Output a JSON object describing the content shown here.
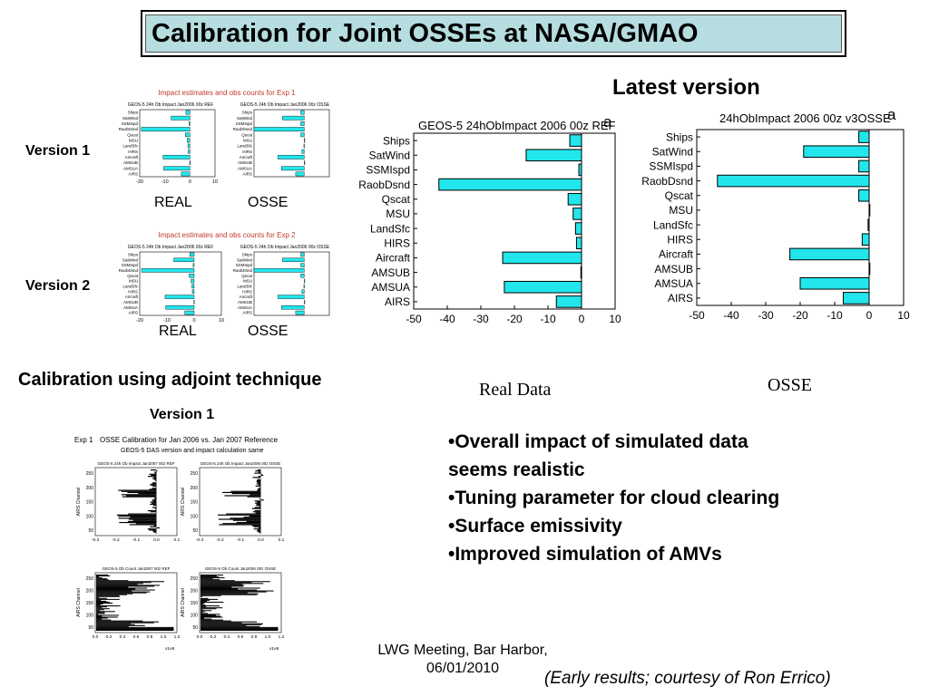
{
  "slide": {
    "title": "Calibration for Joint OSSEs at NASA/GMAO",
    "latest_version": "Latest version",
    "version1": "Version 1",
    "version2": "Version 2",
    "real": "REAL",
    "osse": "OSSE",
    "calibration_adjoint": "Calibration using adjoint technique",
    "version1_lower": "Version 1",
    "real_data": "Real Data",
    "osse_caption": "OSSE",
    "bullets": [
      "•Overall impact of simulated data",
      "seems realistic",
      "•Tuning parameter for cloud clearing",
      "•Surface emissivity",
      "•Improved  simulation of AMVs"
    ],
    "footer_line1": "LWG Meeting, Bar Harbor,",
    "footer_line2": "06/01/2010",
    "credit": "(Early results; courtesy of Ron Errico)"
  },
  "small_figs": {
    "exp1_title": "Impact estimates and obs counts for Exp 1",
    "exp2_title": "Impact estimates and obs counts for Exp 2",
    "ref_title": "GEOS-5 24h Ob Impact Jan2006 00z  REF",
    "osse_title": "GEOS-5 24h Ob Impact Jan2006 00z  OSSE",
    "xticks": [
      "-20",
      "-10",
      "0",
      "10"
    ]
  },
  "adjoint_fig": {
    "header_exp": "Exp 1",
    "header_title": "OSSE Calibration for Jan 2006 vs. Jan 2007 Reference",
    "header_sub": "GEOS-5 DAS version and impact calculation same",
    "tl_title": "GEOS-5 24h Ob Impact Jan2007 00z  REF",
    "tr_title": "GEOS-5 24h Ob Impact Jan2006 00z  OSSE",
    "bl_title": "GEOS-5 Ob Count Jan2007 00z  REF",
    "br_title": "GEOS-5 Ob Count Jan2006 00z  OSSE",
    "ylabel": "AIRS Channel",
    "yticks": [
      "250",
      "200",
      "150",
      "100",
      "50"
    ],
    "impact_xticks": [
      "-0.3",
      "-0.2",
      "-0.1",
      "0.0",
      "0.1"
    ],
    "count_xticks": [
      "0.0",
      "0.2",
      "0.4",
      "0.6",
      "0.8",
      "1.0",
      "1.2"
    ],
    "count_exp": "x1e5"
  },
  "chart_data": [
    {
      "type": "bar",
      "orientation": "horizontal",
      "title": "GEOS-5 24hObImpact 2006 00z REF",
      "panel_letter": "a",
      "categories": [
        "Ships",
        "SatWind",
        "SSMIspd",
        "RaobDsnd",
        "Qscat",
        "MSU",
        "LandSfc",
        "HIRS",
        "Aircraft",
        "AMSUB",
        "AMSUA",
        "AIRS"
      ],
      "values": [
        -3.5,
        -16.5,
        -0.8,
        -42.5,
        -4.0,
        -2.5,
        -1.8,
        -1.5,
        -23.5,
        -0.2,
        -23.0,
        -7.5
      ],
      "xlim": [
        -50,
        10
      ],
      "xticks": [
        -50,
        -40,
        -30,
        -20,
        -10,
        0,
        10
      ],
      "bar_color": "#22e6ec"
    },
    {
      "type": "bar",
      "orientation": "horizontal",
      "title": "24hObImpact 2006 00z v3OSSE",
      "panel_letter": "a",
      "categories": [
        "Ships",
        "SatWind",
        "SSMIspd",
        "RaobDsnd",
        "Qscat",
        "MSU",
        "LandSfc",
        "HIRS",
        "Aircraft",
        "AMSUB",
        "AMSUA",
        "AIRS"
      ],
      "values": [
        -3.0,
        -19.0,
        -3.0,
        -44.0,
        -3.0,
        0.1,
        -0.3,
        -2.0,
        -23.0,
        0.2,
        -20.0,
        -7.5
      ],
      "xlim": [
        -50,
        10
      ],
      "xticks": [
        -50,
        -40,
        -30,
        -20,
        -10,
        0,
        10
      ],
      "bar_color": "#22e6ec"
    }
  ]
}
